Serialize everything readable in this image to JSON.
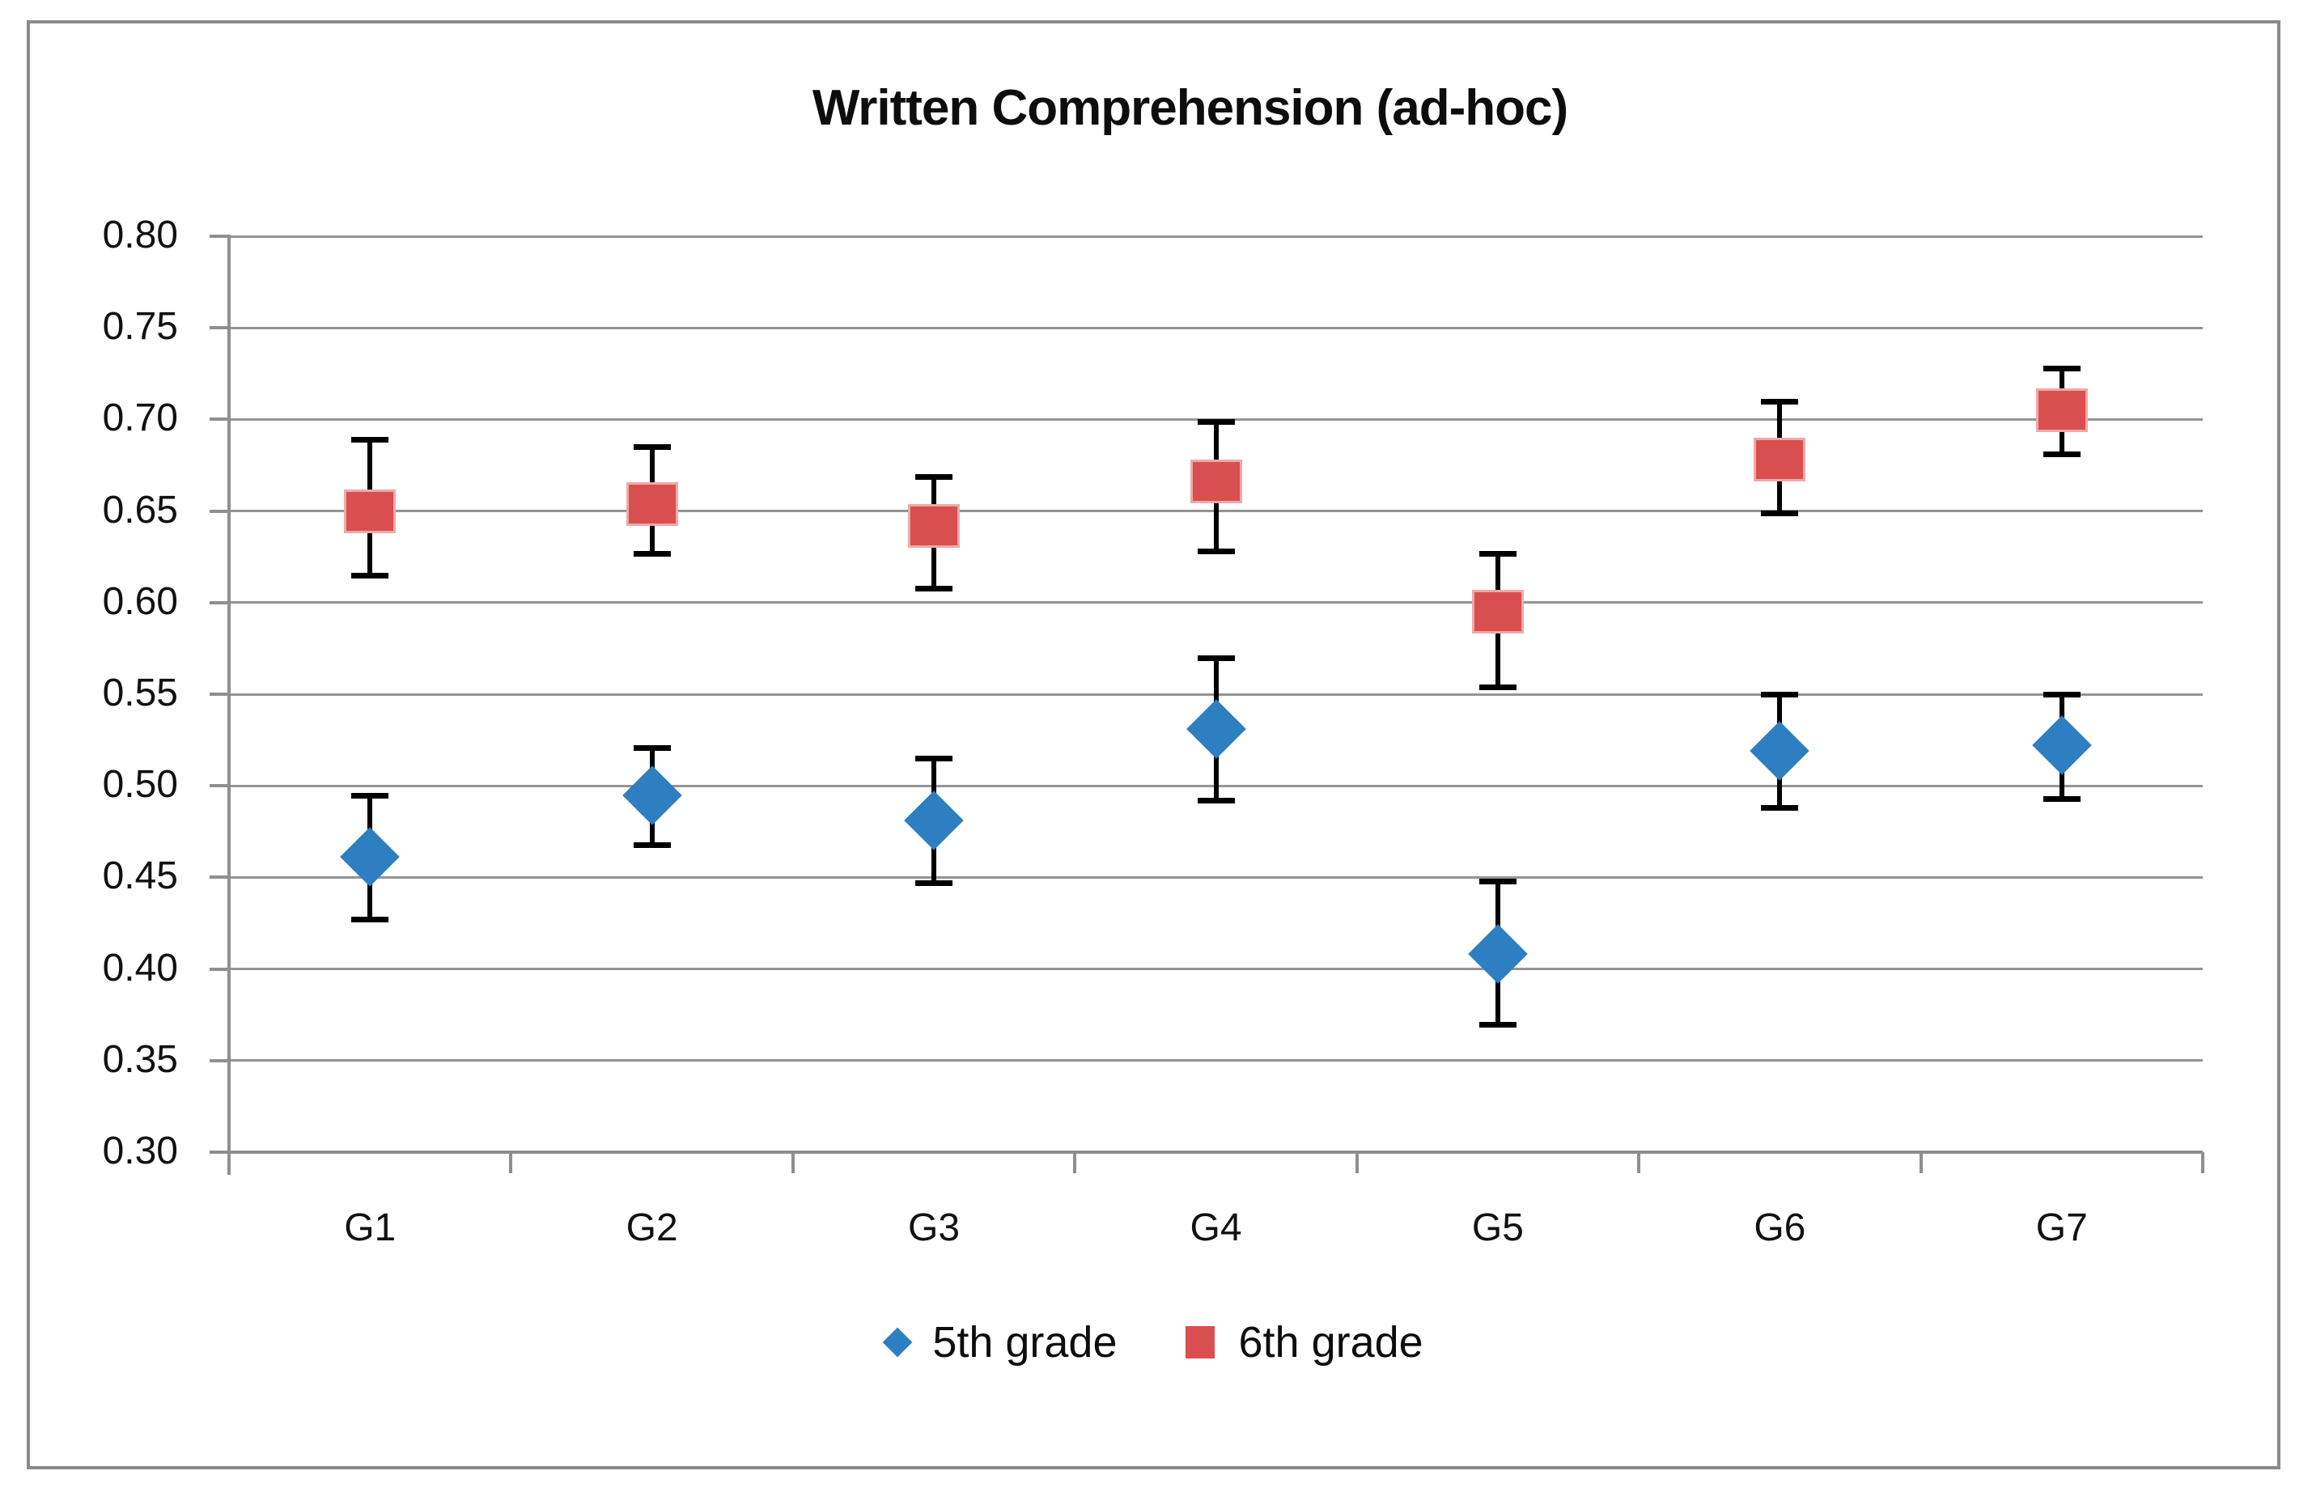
{
  "chart": {
    "title": "Written Comprehension (ad-hoc)",
    "colors": {
      "grade5_blue": "#2d7fc1",
      "grade6_red": "#d94f4f",
      "red_marker_edge": "#efa9a9",
      "gridline": "#949494",
      "axis": "#8f8f8f",
      "error_bar": "#000000",
      "frame_border": "#8a8a8a",
      "text": "#111111",
      "background": "#ffffff"
    }
  },
  "chart_data": {
    "type": "scatter",
    "title": "Written Comprehension (ad-hoc)",
    "categories": [
      "G1",
      "G2",
      "G3",
      "G4",
      "G5",
      "G6",
      "G7"
    ],
    "series": [
      {
        "name": "5th grade",
        "marker": "diamond",
        "color": "#2d7fc1",
        "values": [
          0.461,
          0.495,
          0.481,
          0.531,
          0.408,
          0.519,
          0.522
        ],
        "error_upper": [
          0.495,
          0.521,
          0.515,
          0.57,
          0.448,
          0.55,
          0.55
        ],
        "error_lower": [
          0.427,
          0.468,
          0.447,
          0.492,
          0.37,
          0.488,
          0.493
        ]
      },
      {
        "name": "6th grade",
        "marker": "square",
        "color": "#d94f4f",
        "values": [
          0.65,
          0.654,
          0.642,
          0.666,
          0.595,
          0.678,
          0.705
        ],
        "error_upper": [
          0.689,
          0.685,
          0.669,
          0.699,
          0.627,
          0.71,
          0.728
        ],
        "error_lower": [
          0.615,
          0.627,
          0.608,
          0.628,
          0.554,
          0.649,
          0.681
        ]
      }
    ],
    "xlabel": "",
    "ylabel": "",
    "ylim": [
      0.3,
      0.8
    ],
    "ytick_step": 0.05,
    "yticks": [
      "0.80",
      "0.75",
      "0.70",
      "0.65",
      "0.60",
      "0.55",
      "0.50",
      "0.45",
      "0.40",
      "0.35",
      "0.30"
    ],
    "grid": true,
    "error_bars": true,
    "legend_position": "bottom-center"
  },
  "legend": {
    "items": [
      {
        "label": "5th grade"
      },
      {
        "label": "6th grade"
      }
    ]
  }
}
